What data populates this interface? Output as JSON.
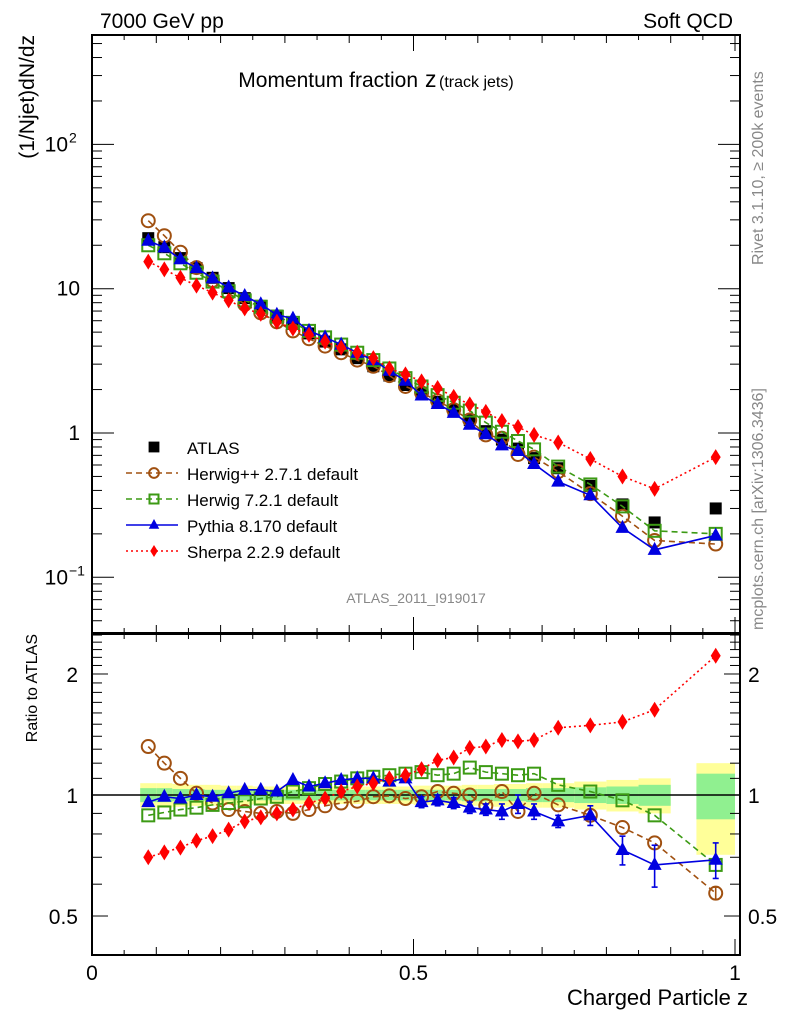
{
  "header": {
    "left": "7000 GeV pp",
    "right": "Soft QCD"
  },
  "side_labels": {
    "rivet": "Rivet 3.1.10, ≥ 200k events",
    "mcplots": "mcplots.cern.ch [arXiv:1306.3436]"
  },
  "colors": {
    "atlas": "#000000",
    "herwigpp": "#a05010",
    "herwig7": "#3c9a14",
    "pythia": "#0000e0",
    "sherpa": "#ff0000",
    "band_inner": "#90f090",
    "band_outer": "#ffff99"
  },
  "chart_data": [
    {
      "type": "scatter",
      "panel": "main",
      "title": "Momentum fraction",
      "title_z": "z",
      "title_suffix": "(track jets)",
      "ylabel": "(1/Njet)dN/dz",
      "xlabel": "",
      "yscale": "log",
      "xlim": [
        0,
        1
      ],
      "ylim": [
        0.04,
        400
      ],
      "yticks": [
        {
          "v": 100,
          "label": "10",
          "sup": "2"
        },
        {
          "v": 10,
          "label": "10",
          "sup": ""
        },
        {
          "v": 1,
          "label": "1",
          "sup": ""
        },
        {
          "v": 0.1,
          "label": "10",
          "sup": "−1"
        }
      ],
      "watermark": "ATLAS_2011_I919017",
      "legend_position": "center-left",
      "x": [
        0.0875,
        0.1125,
        0.1375,
        0.1625,
        0.1875,
        0.2125,
        0.2375,
        0.2625,
        0.2875,
        0.3125,
        0.3375,
        0.3625,
        0.3875,
        0.4125,
        0.4375,
        0.4625,
        0.4875,
        0.5125,
        0.5375,
        0.5625,
        0.5875,
        0.6125,
        0.6375,
        0.6625,
        0.6875,
        0.725,
        0.775,
        0.825,
        0.875,
        0.97
      ],
      "series": [
        {
          "name": "ATLAS",
          "key": "atlas",
          "marker": "square-filled",
          "line": "none",
          "values": [
            22.4,
            19.4,
            16.3,
            13.9,
            11.9,
            10.1,
            8.6,
            7.6,
            6.5,
            5.7,
            4.9,
            4.3,
            3.8,
            3.3,
            2.9,
            2.5,
            2.15,
            1.9,
            1.64,
            1.44,
            1.23,
            1.03,
            0.9,
            0.78,
            0.67,
            0.57,
            0.43,
            0.32,
            0.24,
            0.3
          ]
        },
        {
          "name": "Herwig++ 2.7.1 default",
          "key": "herwigpp",
          "marker": "circle-open",
          "line": "dashed",
          "values": [
            29.6,
            23.3,
            17.9,
            14.0,
            11.4,
            9.3,
            7.8,
            6.8,
            5.9,
            5.1,
            4.5,
            4.0,
            3.6,
            3.2,
            2.9,
            2.5,
            2.1,
            1.9,
            1.67,
            1.45,
            1.23,
            0.97,
            0.92,
            0.71,
            0.68,
            0.54,
            0.38,
            0.265,
            0.18,
            0.17
          ]
        },
        {
          "name": "Herwig 7.2.1 default",
          "key": "herwig7",
          "marker": "square-open",
          "line": "dashed",
          "values": [
            20.0,
            17.6,
            15.0,
            12.9,
            11.2,
            9.6,
            8.3,
            7.5,
            6.4,
            5.8,
            5.1,
            4.6,
            4.1,
            3.6,
            3.2,
            2.8,
            2.4,
            2.1,
            1.83,
            1.62,
            1.43,
            1.18,
            1.02,
            0.88,
            0.77,
            0.585,
            0.44,
            0.31,
            0.21,
            0.2
          ]
        },
        {
          "name": "Pythia 8.170 default",
          "key": "pythia",
          "marker": "triangle-filled",
          "line": "solid",
          "values": [
            21.5,
            19.3,
            16.0,
            13.9,
            11.8,
            10.2,
            8.9,
            7.8,
            6.6,
            6.2,
            5.1,
            4.6,
            4.1,
            3.6,
            3.2,
            2.7,
            2.3,
            1.82,
            1.59,
            1.38,
            1.14,
            0.98,
            0.82,
            0.75,
            0.61,
            0.46,
            0.37,
            0.22,
            0.155,
            0.195
          ]
        },
        {
          "name": "Sherpa 2.2.9 default",
          "key": "sherpa",
          "marker": "diamond-filled",
          "line": "dotted",
          "values": [
            15.4,
            13.6,
            11.9,
            10.5,
            9.4,
            8.3,
            7.3,
            6.7,
            5.9,
            5.3,
            4.8,
            4.3,
            3.9,
            3.6,
            3.3,
            2.8,
            2.55,
            2.28,
            2.05,
            1.78,
            1.58,
            1.4,
            1.21,
            1.1,
            0.97,
            0.86,
            0.66,
            0.5,
            0.41,
            0.68
          ]
        }
      ]
    },
    {
      "type": "scatter",
      "panel": "ratio",
      "ylabel": "Ratio to ATLAS",
      "xlabel": "Charged Particle z",
      "yscale": "log",
      "xlim": [
        0,
        1
      ],
      "ylim": [
        0.41,
        2.58
      ],
      "xticks": [
        {
          "v": 0,
          "label": "0"
        },
        {
          "v": 0.5,
          "label": "0.5"
        },
        {
          "v": 1,
          "label": "1"
        }
      ],
      "yticks": [
        {
          "v": 0.5,
          "label": "0.5"
        },
        {
          "v": 1,
          "label": "1"
        },
        {
          "v": 2,
          "label": "2"
        }
      ],
      "x": [
        0.0875,
        0.1125,
        0.1375,
        0.1625,
        0.1875,
        0.2125,
        0.2375,
        0.2625,
        0.2875,
        0.3125,
        0.3375,
        0.3625,
        0.3875,
        0.4125,
        0.4375,
        0.4625,
        0.4875,
        0.5125,
        0.5375,
        0.5625,
        0.5875,
        0.6125,
        0.6375,
        0.6625,
        0.6875,
        0.725,
        0.775,
        0.825,
        0.875,
        0.97
      ],
      "bins": [
        [
          0.075,
          0.1
        ],
        [
          0.1,
          0.125
        ],
        [
          0.125,
          0.15
        ],
        [
          0.15,
          0.175
        ],
        [
          0.175,
          0.2
        ],
        [
          0.2,
          0.225
        ],
        [
          0.225,
          0.25
        ],
        [
          0.25,
          0.275
        ],
        [
          0.275,
          0.3
        ],
        [
          0.3,
          0.325
        ],
        [
          0.325,
          0.35
        ],
        [
          0.35,
          0.375
        ],
        [
          0.375,
          0.4
        ],
        [
          0.4,
          0.425
        ],
        [
          0.425,
          0.45
        ],
        [
          0.45,
          0.475
        ],
        [
          0.475,
          0.5
        ],
        [
          0.5,
          0.525
        ],
        [
          0.525,
          0.55
        ],
        [
          0.55,
          0.575
        ],
        [
          0.575,
          0.6
        ],
        [
          0.6,
          0.625
        ],
        [
          0.625,
          0.65
        ],
        [
          0.65,
          0.675
        ],
        [
          0.675,
          0.7
        ],
        [
          0.7,
          0.75
        ],
        [
          0.75,
          0.8
        ],
        [
          0.8,
          0.85
        ],
        [
          0.85,
          0.9
        ],
        [
          0.94,
          1.0
        ]
      ],
      "band_stat": [
        0.04,
        0.04,
        0.035,
        0.035,
        0.03,
        0.03,
        0.03,
        0.03,
        0.03,
        0.03,
        0.03,
        0.03,
        0.03,
        0.03,
        0.03,
        0.03,
        0.03,
        0.03,
        0.03,
        0.03,
        0.035,
        0.035,
        0.035,
        0.035,
        0.04,
        0.04,
        0.045,
        0.05,
        0.06,
        0.13
      ],
      "band_total": [
        0.07,
        0.07,
        0.065,
        0.06,
        0.06,
        0.055,
        0.055,
        0.05,
        0.05,
        0.05,
        0.05,
        0.05,
        0.05,
        0.05,
        0.05,
        0.05,
        0.05,
        0.055,
        0.055,
        0.055,
        0.06,
        0.06,
        0.065,
        0.065,
        0.07,
        0.07,
        0.08,
        0.09,
        0.1,
        0.2
      ],
      "band_total_low": [
        0.07,
        0.07,
        0.065,
        0.06,
        0.06,
        0.055,
        0.055,
        0.05,
        0.05,
        0.05,
        0.05,
        0.05,
        0.05,
        0.05,
        0.05,
        0.05,
        0.05,
        0.055,
        0.055,
        0.055,
        0.06,
        0.06,
        0.065,
        0.065,
        0.07,
        0.07,
        0.08,
        0.09,
        0.1,
        0.29
      ],
      "series": [
        {
          "name": "Herwig++ 2.7.1 default",
          "key": "herwigpp",
          "marker": "circle-open",
          "line": "dashed",
          "values": [
            1.32,
            1.2,
            1.1,
            1.01,
            0.955,
            0.92,
            0.91,
            0.9,
            0.91,
            0.9,
            0.92,
            0.94,
            0.955,
            0.965,
            0.99,
            0.995,
            0.98,
            0.99,
            1.02,
            1.01,
            1.0,
            0.94,
            1.02,
            0.91,
            1.01,
            0.945,
            0.89,
            0.83,
            0.76,
            0.57
          ],
          "errors": [
            0,
            0,
            0,
            0,
            0,
            0,
            0,
            0,
            0,
            0,
            0,
            0,
            0,
            0,
            0,
            0,
            0,
            0,
            0,
            0,
            0,
            0,
            0,
            0,
            0,
            0,
            0,
            0,
            0,
            0.02
          ]
        },
        {
          "name": "Herwig 7.2.1 default",
          "key": "herwig7",
          "marker": "square-open",
          "line": "dashed",
          "values": [
            0.89,
            0.905,
            0.92,
            0.93,
            0.945,
            0.955,
            0.965,
            0.98,
            0.99,
            1.02,
            1.04,
            1.065,
            1.08,
            1.1,
            1.11,
            1.12,
            1.13,
            1.14,
            1.12,
            1.13,
            1.17,
            1.14,
            1.13,
            1.12,
            1.13,
            1.06,
            1.02,
            0.97,
            0.89,
            0.67
          ],
          "errors": [
            0,
            0,
            0,
            0,
            0,
            0,
            0,
            0,
            0,
            0,
            0,
            0,
            0,
            0,
            0,
            0,
            0,
            0,
            0,
            0,
            0,
            0,
            0,
            0,
            0,
            0,
            0,
            0,
            0,
            0
          ]
        },
        {
          "name": "Pythia 8.170 default",
          "key": "pythia",
          "marker": "triangle-filled",
          "line": "solid",
          "values": [
            0.96,
            0.99,
            0.98,
            1.0,
            0.99,
            1.01,
            1.03,
            1.03,
            1.02,
            1.09,
            1.05,
            1.07,
            1.09,
            1.1,
            1.1,
            1.08,
            1.1,
            0.96,
            0.97,
            0.955,
            0.93,
            0.92,
            0.91,
            0.95,
            0.91,
            0.86,
            0.89,
            0.73,
            0.67,
            0.69
          ],
          "errors": [
            0,
            0,
            0,
            0,
            0,
            0,
            0,
            0,
            0,
            0,
            0,
            0,
            0,
            0,
            0,
            0.02,
            0.02,
            0.03,
            0.03,
            0.03,
            0.03,
            0.03,
            0.04,
            0.05,
            0.04,
            0.03,
            0.05,
            0.06,
            0.08,
            0.07
          ]
        },
        {
          "name": "Sherpa 2.2.9 default",
          "key": "sherpa",
          "marker": "diamond-filled",
          "line": "dotted",
          "values": [
            0.7,
            0.72,
            0.74,
            0.77,
            0.79,
            0.82,
            0.86,
            0.88,
            0.9,
            0.92,
            0.955,
            0.98,
            1.02,
            1.05,
            1.07,
            1.1,
            1.12,
            1.16,
            1.22,
            1.24,
            1.31,
            1.32,
            1.37,
            1.36,
            1.37,
            1.47,
            1.49,
            1.52,
            1.63,
            2.22
          ],
          "errors": [
            0,
            0,
            0,
            0,
            0,
            0,
            0,
            0,
            0,
            0,
            0,
            0,
            0,
            0,
            0,
            0,
            0,
            0,
            0,
            0,
            0,
            0,
            0,
            0,
            0,
            0,
            0,
            0,
            0,
            0
          ]
        }
      ]
    }
  ]
}
